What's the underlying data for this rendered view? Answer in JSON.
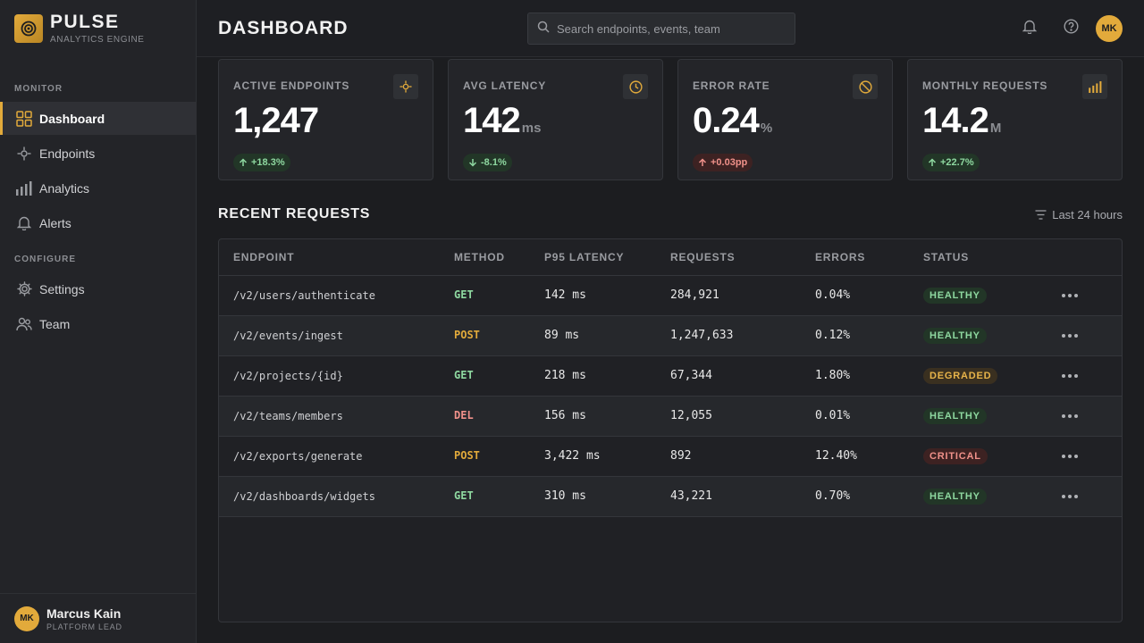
{
  "brand": {
    "name": "PULSE",
    "subtitle": "ANALYTICS ENGINE"
  },
  "sidebar": {
    "sections": [
      {
        "title": "MONITOR",
        "items": [
          {
            "label": "Dashboard",
            "icon": "grid-icon",
            "active": true
          },
          {
            "label": "Endpoints",
            "icon": "crosshair-icon"
          },
          {
            "label": "Analytics",
            "icon": "bar-chart-icon"
          },
          {
            "label": "Alerts",
            "icon": "bell-icon"
          }
        ]
      },
      {
        "title": "CONFIGURE",
        "items": [
          {
            "label": "Settings",
            "icon": "gear-icon"
          },
          {
            "label": "Team",
            "icon": "users-icon"
          }
        ]
      }
    ],
    "user": {
      "initials": "MK",
      "name": "Marcus Kain",
      "role": "PLATFORM LEAD"
    }
  },
  "header": {
    "title": "DASHBOARD",
    "search_placeholder": "Search endpoints, events, team",
    "avatar_initials": "MK"
  },
  "cards": [
    {
      "label": "ACTIVE ENDPOINTS",
      "value": "1,247",
      "unit": "",
      "delta": "+18.3%",
      "trend": "up",
      "tone": "good",
      "icon": "crosshair-icon"
    },
    {
      "label": "AVG LATENCY",
      "value": "142",
      "unit": "ms",
      "delta": "-8.1%",
      "trend": "down",
      "tone": "good",
      "icon": "clock-icon"
    },
    {
      "label": "ERROR RATE",
      "value": "0.24",
      "unit": "%",
      "delta": "+0.03pp",
      "trend": "up",
      "tone": "bad",
      "icon": "ban-icon"
    },
    {
      "label": "MONTHLY REQUESTS",
      "value": "14.2",
      "unit": "M",
      "delta": "+22.7%",
      "trend": "up",
      "tone": "good",
      "icon": "bar-chart-icon"
    }
  ],
  "recent": {
    "title": "RECENT REQUESTS",
    "filter_label": "Last 24 hours",
    "columns": [
      "ENDPOINT",
      "METHOD",
      "P95 LATENCY",
      "REQUESTS",
      "ERRORS",
      "STATUS"
    ],
    "rows": [
      {
        "endpoint": "/v2/users/authenticate",
        "method": "GET",
        "latency": "142 ms",
        "requests": "284,921",
        "errors": "0.04%",
        "status": "HEALTHY"
      },
      {
        "endpoint": "/v2/events/ingest",
        "method": "POST",
        "latency": "89 ms",
        "requests": "1,247,633",
        "errors": "0.12%",
        "status": "HEALTHY"
      },
      {
        "endpoint": "/v2/projects/{id}",
        "method": "GET",
        "latency": "218 ms",
        "requests": "67,344",
        "errors": "1.80%",
        "status": "DEGRADED"
      },
      {
        "endpoint": "/v2/teams/members",
        "method": "DEL",
        "latency": "156 ms",
        "requests": "12,055",
        "errors": "0.01%",
        "status": "HEALTHY"
      },
      {
        "endpoint": "/v2/exports/generate",
        "method": "POST",
        "latency": "3,422 ms",
        "requests": "892",
        "errors": "12.40%",
        "status": "CRITICAL"
      },
      {
        "endpoint": "/v2/dashboards/widgets",
        "method": "GET",
        "latency": "310 ms",
        "requests": "43,221",
        "errors": "0.70%",
        "status": "HEALTHY"
      }
    ]
  },
  "colors": {
    "accent": "#e2aa3b",
    "good": "#8ed8a0",
    "bad": "#f0918a",
    "warn": "#e8b44a",
    "background": "#1c1d20"
  }
}
